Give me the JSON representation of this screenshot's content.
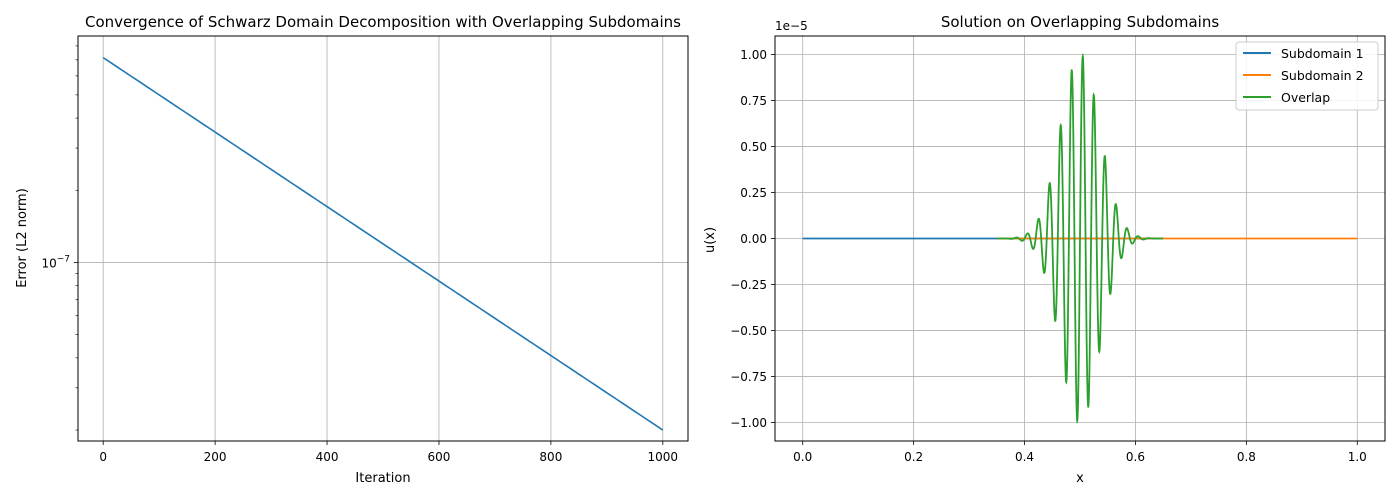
{
  "chart_data": [
    {
      "type": "line",
      "title": "Convergence of Schwarz Domain Decomposition with Overlapping Subdomains",
      "xlabel": "Iteration",
      "ylabel": "Error (L2 norm)",
      "yscale": "log",
      "grid": true,
      "xlim": [
        -45,
        1045
      ],
      "ylim": [
        1.8e-08,
        8.8e-07
      ],
      "xticks": [
        0,
        200,
        400,
        600,
        800,
        1000
      ],
      "xtick_labels": [
        "0",
        "200",
        "400",
        "600",
        "800",
        "1000"
      ],
      "yticks": [
        1e-07
      ],
      "ytick_labels": [
        "10^-7"
      ],
      "series": [
        {
          "color": "#1f77b4",
          "start": [
            0,
            7.15e-07
          ],
          "end": [
            1000,
            2e-08
          ],
          "decay": "exponential"
        }
      ]
    },
    {
      "type": "line",
      "title": "Solution on Overlapping Subdomains",
      "xlabel": "x",
      "ylabel": "u(x)",
      "offset_text": "1e−5",
      "grid": true,
      "xlim": [
        -0.05,
        1.05
      ],
      "ylim": [
        -1.1,
        1.1
      ],
      "y_unit": 1e-05,
      "xticks": [
        0.0,
        0.2,
        0.4,
        0.6,
        0.8,
        1.0
      ],
      "xtick_labels": [
        "0.0",
        "0.2",
        "0.4",
        "0.6",
        "0.8",
        "1.0"
      ],
      "yticks": [
        -1.0,
        -0.75,
        -0.5,
        -0.25,
        0.0,
        0.25,
        0.5,
        0.75,
        1.0
      ],
      "ytick_labels": [
        "−1.00",
        "−0.75",
        "−0.50",
        "−0.25",
        "0.00",
        "0.25",
        "0.50",
        "0.75",
        "1.00"
      ],
      "legend_position": "top-right",
      "series": [
        {
          "name": "Subdomain 1",
          "color": "#1f77b4",
          "x_range": [
            0.0,
            0.65
          ],
          "constant": 0.0
        },
        {
          "name": "Subdomain 2",
          "color": "#ff7f0e",
          "x_range": [
            0.35,
            1.0
          ],
          "constant": 0.0
        },
        {
          "name": "Overlap",
          "color": "#2ca02c",
          "x_range": [
            0.35,
            0.65
          ],
          "function": "u(x) = sin(100πx)·exp(−((x−0.5)/0.05)²)",
          "amplitude": 1.0,
          "center": 0.5
        }
      ]
    }
  ]
}
